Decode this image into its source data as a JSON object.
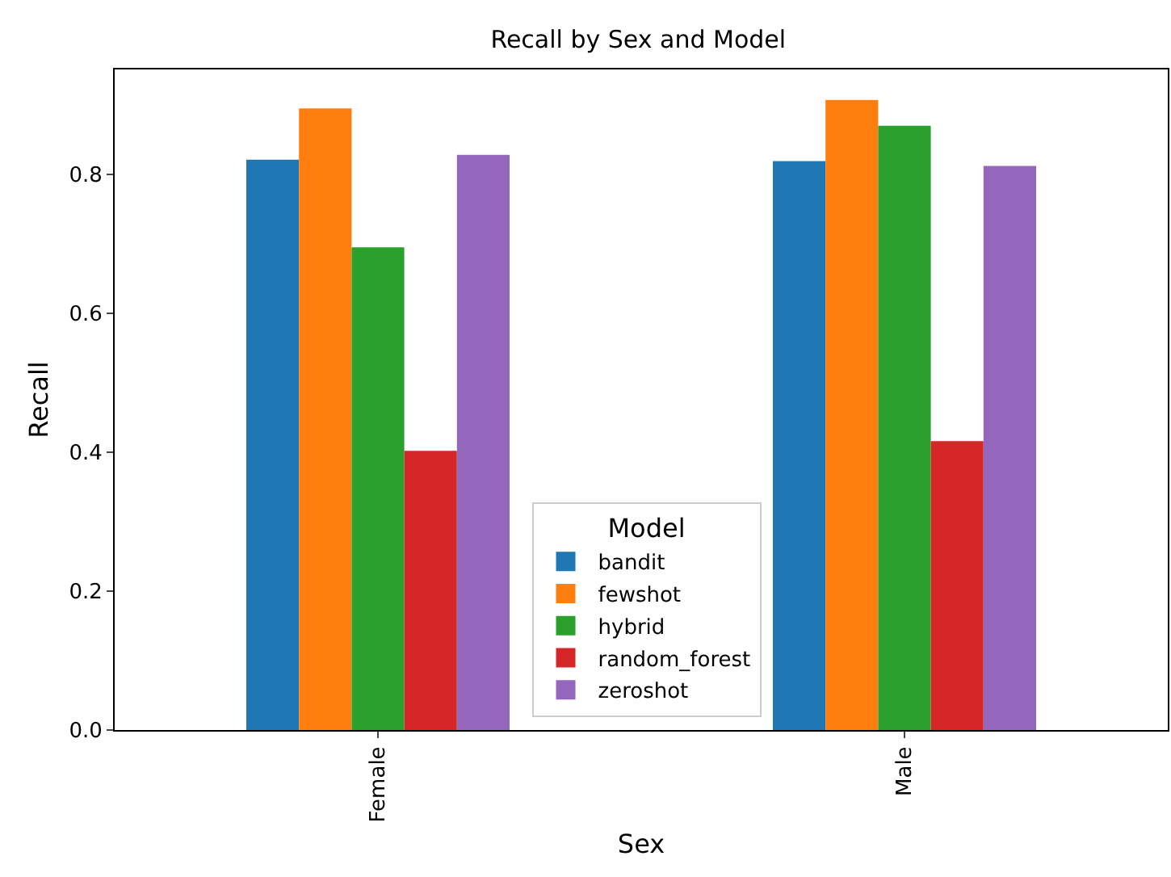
{
  "chart_data": {
    "type": "bar",
    "title": "Recall by Sex and Model",
    "xlabel": "Sex",
    "ylabel": "Recall",
    "legend_title": "Model",
    "categories": [
      "Female",
      "Male"
    ],
    "series": [
      {
        "name": "bandit",
        "color": "#1f77b4",
        "values": [
          0.821,
          0.819
        ]
      },
      {
        "name": "fewshot",
        "color": "#ff7f0e",
        "values": [
          0.895,
          0.907
        ]
      },
      {
        "name": "hybrid",
        "color": "#2ca02c",
        "values": [
          0.695,
          0.87
        ]
      },
      {
        "name": "random_forest",
        "color": "#d62728",
        "values": [
          0.402,
          0.416
        ]
      },
      {
        "name": "zeroshot",
        "color": "#9467bd",
        "values": [
          0.828,
          0.812
        ]
      }
    ],
    "ylim": [
      0,
      0.951
    ],
    "yticks": [
      {
        "value": 0,
        "label": "0.0"
      },
      {
        "value": 0.2,
        "label": "0.2"
      },
      {
        "value": 0.4,
        "label": "0.4"
      },
      {
        "value": 0.6,
        "label": "0.6"
      },
      {
        "value": 0.8,
        "label": "0.8"
      }
    ],
    "legend": "bottom",
    "grid": false
  }
}
